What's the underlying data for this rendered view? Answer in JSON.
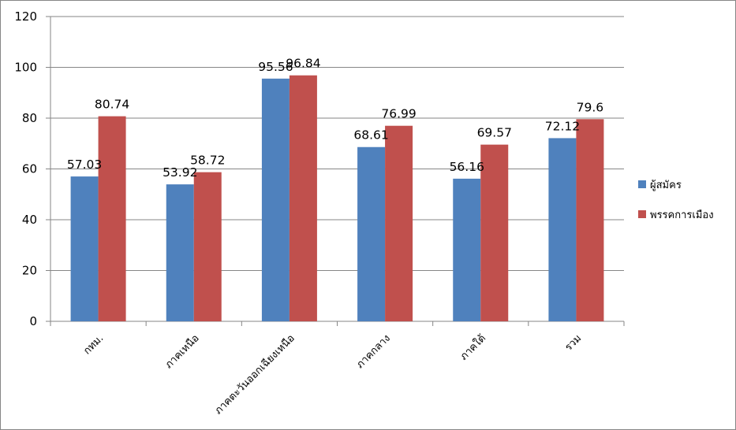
{
  "chart_data": {
    "type": "bar",
    "title": "",
    "xlabel": "",
    "ylabel": "",
    "ylim": [
      0,
      120
    ],
    "yticks": [
      0,
      20,
      40,
      60,
      80,
      100,
      120
    ],
    "grid": true,
    "legend_position": "right",
    "categories": [
      "กทม.",
      "ภาคเหนือ",
      "ภาคตะวันออกเฉียงเหนือ",
      "ภาคกลาง",
      "ภาคใต้",
      "รวม"
    ],
    "series": [
      {
        "name": "ผู้สมัคร",
        "color": "#4F81BD",
        "values": [
          57.03,
          53.92,
          95.56,
          68.61,
          56.16,
          72.12
        ],
        "labels": [
          "57.03",
          "53.92",
          "95.56",
          "68.61",
          "56.16",
          "72.12"
        ]
      },
      {
        "name": "พรรคการเมือง",
        "color": "#C0504D",
        "values": [
          80.74,
          58.72,
          96.84,
          76.99,
          69.57,
          79.6
        ],
        "labels": [
          "80.74",
          "58.72",
          "96.84",
          "76.99",
          "69.57",
          "79.6"
        ]
      }
    ]
  }
}
